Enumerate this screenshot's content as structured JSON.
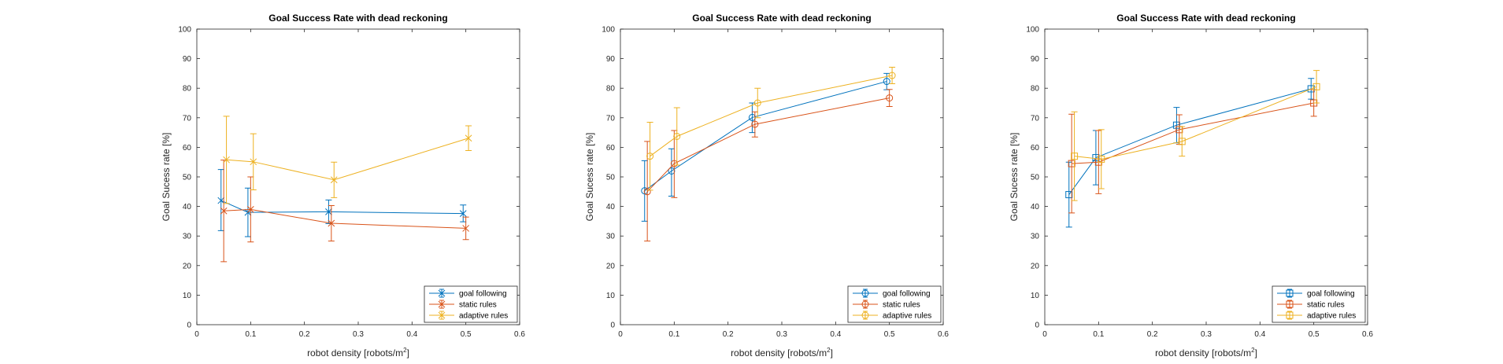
{
  "chart_data": [
    {
      "type": "line",
      "title": "Goal Success Rate with dead reckoning",
      "xlabel": "robot density [robots/m",
      "xlabel_sup": "2",
      "xlabel_end": "]",
      "ylabel": "Goal Sucess rate [%]",
      "xlim": [
        0,
        0.6
      ],
      "ylim": [
        0,
        100
      ],
      "xticks": [
        "0",
        "0.1",
        "0.2",
        "0.3",
        "0.4",
        "0.5",
        "0.6"
      ],
      "yticks": [
        "0",
        "10",
        "20",
        "30",
        "40",
        "50",
        "60",
        "70",
        "80",
        "90",
        "100"
      ],
      "legend_position": "bottom-right",
      "marker": "x",
      "series": [
        {
          "name": "goal following",
          "color": "#0072BD",
          "x": [
            0.045,
            0.095,
            0.245,
            0.495
          ],
          "y": [
            42.0,
            38.0,
            38.2,
            37.6
          ],
          "err_low": [
            31.8,
            29.8,
            34.2,
            34.8
          ],
          "err_high": [
            52.5,
            46.2,
            42.2,
            40.5
          ]
        },
        {
          "name": "static rules",
          "color": "#D95319",
          "x": [
            0.05,
            0.1,
            0.25,
            0.5
          ],
          "y": [
            38.5,
            39.0,
            34.3,
            32.6
          ],
          "err_low": [
            21.3,
            28.0,
            28.3,
            28.8
          ],
          "err_high": [
            55.7,
            50.0,
            40.3,
            36.4
          ]
        },
        {
          "name": "adaptive rules",
          "color": "#EDB120",
          "x": [
            0.055,
            0.105,
            0.255,
            0.505
          ],
          "y": [
            55.8,
            55.1,
            49.0,
            63.1
          ],
          "err_low": [
            41.0,
            45.6,
            43.0,
            58.9
          ],
          "err_high": [
            70.5,
            64.6,
            55.0,
            67.3
          ]
        }
      ]
    },
    {
      "type": "line",
      "title": "Goal Success Rate with dead reckoning",
      "xlabel": "robot density [robots/m",
      "xlabel_sup": "2",
      "xlabel_end": "]",
      "ylabel": "Goal Sucess rate [%]",
      "xlim": [
        0,
        0.6
      ],
      "ylim": [
        0,
        100
      ],
      "xticks": [
        "0",
        "0.1",
        "0.2",
        "0.3",
        "0.4",
        "0.5",
        "0.6"
      ],
      "yticks": [
        "0",
        "10",
        "20",
        "30",
        "40",
        "50",
        "60",
        "70",
        "80",
        "90",
        "100"
      ],
      "legend_position": "bottom-right",
      "marker": "o",
      "series": [
        {
          "name": "goal following",
          "color": "#0072BD",
          "x": [
            0.045,
            0.095,
            0.245,
            0.495
          ],
          "y": [
            45.3,
            52.0,
            70.1,
            82.3
          ],
          "err_low": [
            35.0,
            43.5,
            65.0,
            79.5
          ],
          "err_high": [
            55.5,
            59.5,
            75.0,
            85.0
          ]
        },
        {
          "name": "static rules",
          "color": "#D95319",
          "x": [
            0.05,
            0.1,
            0.25,
            0.5
          ],
          "y": [
            45.0,
            54.5,
            67.8,
            76.7
          ],
          "err_low": [
            28.3,
            43.0,
            63.5,
            73.8
          ],
          "err_high": [
            62.0,
            65.7,
            72.0,
            79.6
          ]
        },
        {
          "name": "adaptive rules",
          "color": "#EDB120",
          "x": [
            0.055,
            0.105,
            0.255,
            0.505
          ],
          "y": [
            57.0,
            63.7,
            75.0,
            84.3
          ],
          "err_low": [
            45.5,
            54.0,
            70.0,
            81.5
          ],
          "err_high": [
            68.5,
            73.4,
            80.0,
            87.1
          ]
        }
      ]
    },
    {
      "type": "line",
      "title": "Goal Success Rate with dead reckoning",
      "xlabel": "robot density [robots/m",
      "xlabel_sup": "2",
      "xlabel_end": "]",
      "ylabel": "Goal Sucess rate [%]",
      "xlim": [
        0,
        0.6
      ],
      "ylim": [
        0,
        100
      ],
      "xticks": [
        "0",
        "0.1",
        "0.2",
        "0.3",
        "0.4",
        "0.5",
        "0.6"
      ],
      "yticks": [
        "0",
        "10",
        "20",
        "30",
        "40",
        "50",
        "60",
        "70",
        "80",
        "90",
        "100"
      ],
      "legend_position": "bottom-right",
      "marker": "s",
      "series": [
        {
          "name": "goal following",
          "color": "#0072BD",
          "x": [
            0.045,
            0.095,
            0.245,
            0.495
          ],
          "y": [
            44.0,
            56.5,
            67.5,
            79.8
          ],
          "err_low": [
            33.0,
            47.3,
            61.5,
            76.3
          ],
          "err_high": [
            55.0,
            65.7,
            73.5,
            83.3
          ]
        },
        {
          "name": "static rules",
          "color": "#D95319",
          "x": [
            0.05,
            0.1,
            0.25,
            0.5
          ],
          "y": [
            54.5,
            55.0,
            66.0,
            75.0
          ],
          "err_low": [
            37.8,
            44.3,
            61.0,
            70.5
          ],
          "err_high": [
            71.2,
            65.7,
            71.0,
            79.5
          ]
        },
        {
          "name": "adaptive rules",
          "color": "#EDB120",
          "x": [
            0.055,
            0.105,
            0.255,
            0.505
          ],
          "y": [
            57.0,
            56.0,
            62.0,
            80.5
          ],
          "err_low": [
            42.0,
            46.0,
            57.0,
            75.0
          ],
          "err_high": [
            72.0,
            66.0,
            67.0,
            86.0
          ]
        }
      ]
    }
  ]
}
